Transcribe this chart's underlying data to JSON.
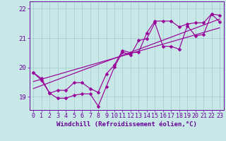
{
  "xlabel": "Windchill (Refroidissement éolien,°C)",
  "bg_color": "#c8e8e8",
  "line_color": "#990099",
  "grid_color": "#a0cccc",
  "axis_color": "#660099",
  "tick_label_color": "#660099",
  "x_ticks": [
    0,
    1,
    2,
    3,
    4,
    5,
    6,
    7,
    8,
    9,
    10,
    11,
    12,
    13,
    14,
    15,
    16,
    17,
    18,
    19,
    20,
    21,
    22,
    23
  ],
  "y_ticks": [
    19,
    20,
    21,
    22
  ],
  "ylim": [
    18.55,
    22.25
  ],
  "xlim": [
    -0.5,
    23.5
  ],
  "series1": [
    19.82,
    19.62,
    19.12,
    18.95,
    18.95,
    19.05,
    19.1,
    19.1,
    18.68,
    19.35,
    20.02,
    20.52,
    20.42,
    20.92,
    20.98,
    21.52,
    20.72,
    20.72,
    20.62,
    21.42,
    21.08,
    21.12,
    21.82,
    21.78
  ],
  "series2": [
    19.82,
    19.56,
    19.12,
    19.22,
    19.22,
    19.48,
    19.48,
    19.28,
    19.15,
    19.78,
    20.08,
    20.58,
    20.5,
    20.52,
    21.18,
    21.58,
    21.58,
    21.58,
    21.38,
    21.48,
    21.52,
    21.52,
    21.82,
    21.55
  ],
  "trend1_x": [
    0,
    23
  ],
  "trend1_y": [
    19.28,
    21.65
  ],
  "trend2_x": [
    0,
    23
  ],
  "trend2_y": [
    19.52,
    21.35
  ],
  "xlabel_fontsize": 6.5,
  "tick_fontsize": 6.0,
  "marker_size": 2.5,
  "linewidth": 0.85
}
